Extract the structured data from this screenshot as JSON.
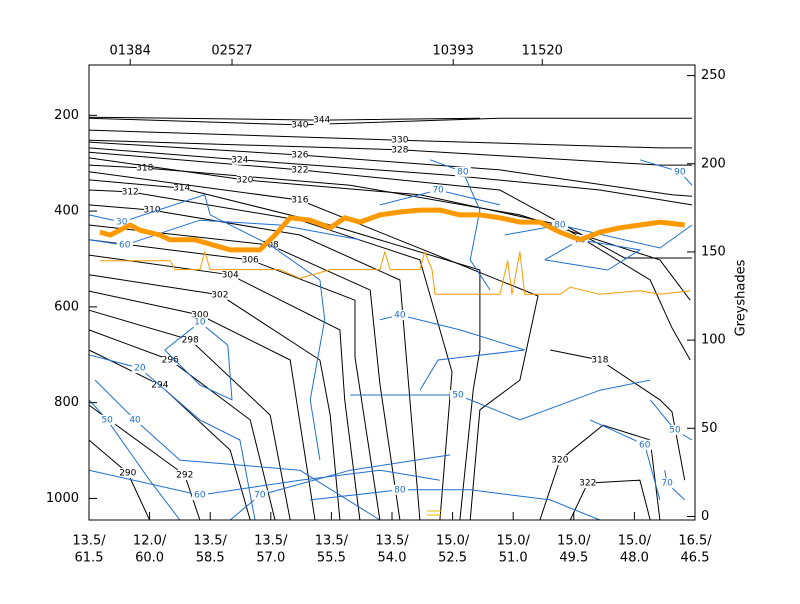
{
  "chart_data": {
    "type": "cross-section",
    "y_label": "Greyshades",
    "xlim": [
      0,
      10
    ],
    "ylim": [
      1045,
      95
    ],
    "y2lim": [
      -2,
      256
    ],
    "xticks": [
      {
        "value": 0,
        "label": [
          "13.5/",
          "61.5"
        ]
      },
      {
        "value": 1,
        "label": [
          "12.0/",
          "60.0"
        ]
      },
      {
        "value": 2,
        "label": [
          "13.5/",
          "58.5"
        ]
      },
      {
        "value": 3,
        "label": [
          "13.5/",
          "57.0"
        ]
      },
      {
        "value": 4,
        "label": [
          "13.5/",
          "55.5"
        ]
      },
      {
        "value": 5,
        "label": [
          "13.5/",
          "54.0"
        ]
      },
      {
        "value": 6,
        "label": [
          "15.0/",
          "52.5"
        ]
      },
      {
        "value": 7,
        "label": [
          "15.0/",
          "51.0"
        ]
      },
      {
        "value": 8,
        "label": [
          "15.0/",
          "49.5"
        ]
      },
      {
        "value": 9,
        "label": [
          "15.0/",
          "48.0"
        ]
      },
      {
        "value": 10,
        "label": [
          "16.5/",
          "46.5"
        ]
      }
    ],
    "yticks": [
      200,
      400,
      600,
      800,
      1000
    ],
    "y2ticks": [
      0,
      50,
      100,
      150,
      200,
      250
    ],
    "stations": [
      {
        "label": "01384",
        "x": 0.68
      },
      {
        "label": "02527",
        "x": 2.36
      },
      {
        "label": "10393",
        "x": 6.01
      },
      {
        "label": "11520",
        "x": 7.48
      }
    ],
    "theta_contours": {
      "color": "#000000",
      "lines": [
        {
          "level": 290,
          "x": [
            0,
            0.64,
            1.0
          ],
          "y": [
            878,
            947,
            1045
          ]
        },
        {
          "level": 292,
          "x": [
            0,
            1.58,
            1.83
          ],
          "y": [
            805,
            951,
            1045
          ]
        },
        {
          "level": 294,
          "x": [
            0,
            1.17,
            2.33,
            2.66
          ],
          "y": [
            690,
            763,
            899,
            1045
          ]
        },
        {
          "level": 296,
          "x": [
            0,
            1.34,
            2.66,
            3.07
          ],
          "y": [
            648,
            711,
            836,
            1045
          ]
        },
        {
          "level": 298,
          "x": [
            0,
            1.67,
            2.99,
            3.32
          ],
          "y": [
            607,
            669,
            826,
            1045
          ]
        },
        {
          "level": 300,
          "x": [
            0,
            1.83,
            3.32,
            3.73
          ],
          "y": [
            567,
            617,
            711,
            1045
          ]
        },
        {
          "level": 302,
          "x": [
            0,
            2.16,
            3.81,
            3.98,
            4.14
          ],
          "y": [
            533,
            575,
            711,
            826,
            1045
          ]
        },
        {
          "level": 304,
          "x": [
            0,
            2.33,
            4.14,
            4.22,
            4.47
          ],
          "y": [
            492,
            533,
            648,
            794,
            1045
          ]
        },
        {
          "level": 306,
          "x": [
            0,
            2.66,
            4.39,
            4.39,
            4.8
          ],
          "y": [
            460,
            502,
            586,
            705,
            1045
          ]
        },
        {
          "level": 308,
          "x": [
            0,
            2.99,
            4.64,
            4.8,
            5.13
          ],
          "y": [
            429,
            471,
            565,
            761,
            1045
          ]
        },
        {
          "level": 310,
          "x": [
            0,
            1.04,
            3.48,
            5.13,
            5.46
          ],
          "y": [
            387,
            398,
            450,
            544,
            1045
          ]
        },
        {
          "level": 312,
          "x": [
            0,
            0.68,
            3.48,
            5.46,
            5.99,
            5.79
          ],
          "y": [
            356,
            360,
            419,
            502,
            736,
            1045
          ]
        },
        {
          "level": 314,
          "x": [
            0,
            1.53,
            3.98,
            6.45,
            6.45,
            6.34,
            6.12
          ],
          "y": [
            335,
            352,
            429,
            523,
            690,
            774,
            1045
          ]
        },
        {
          "level": 316,
          "x": [
            0,
            3.48,
            7.41,
            7.11,
            6.45,
            6.29
          ],
          "y": [
            318,
            377,
            577,
            753,
            815,
            1045
          ]
        },
        {
          "level": 318,
          "x": [
            0,
            0.92,
            4.31,
            7.11,
            9.42,
            9.92
          ],
          "y": [
            304,
            310,
            346,
            408,
            502,
            586
          ]
        },
        {
          "level": 320,
          "x": [
            0,
            2.57,
            5.46,
            7.77,
            9.26,
            9.62,
            9.92
          ],
          "y": [
            289,
            335,
            366,
            429,
            544,
            644,
            711
          ]
        },
        {
          "level": 322,
          "x": [
            0,
            3.48,
            6.78,
            8.84,
            9.95
          ],
          "y": [
            277,
            314,
            356,
            498,
            498
          ]
        },
        {
          "level": 324,
          "x": [
            0,
            2.49,
            5.96,
            8.43,
            9.95
          ],
          "y": [
            268,
            293,
            325,
            356,
            387
          ]
        },
        {
          "level": 326,
          "x": [
            0,
            3.48,
            6.78,
            9.62,
            9.95
          ],
          "y": [
            256,
            283,
            314,
            366,
            369
          ]
        },
        {
          "level": 328,
          "x": [
            0,
            5.13,
            9.42,
            9.95
          ],
          "y": [
            252,
            272,
            304,
            304
          ]
        },
        {
          "level": 330,
          "x": [
            0,
            5.13,
            9.42,
            9.95
          ],
          "y": [
            231,
            252,
            268,
            268
          ]
        },
        {
          "level": 340,
          "x": [
            0,
            3.48,
            6.78,
            8.73,
            9.95
          ],
          "y": [
            206,
            220,
            206,
            206,
            206
          ]
        },
        {
          "level": 344,
          "x": [
            0,
            3.84,
            6.45
          ],
          "y": [
            204,
            210,
            206
          ]
        },
        {
          "level": 320,
          "x": [
            7.44,
            7.77,
            8.48,
            9.26,
            9.42
          ],
          "y": [
            1045,
            920,
            847,
            878,
            1045
          ]
        },
        {
          "level": 322,
          "x": [
            7.94,
            8.23,
            9.09,
            9.26
          ],
          "y": [
            1045,
            968,
            962,
            1045
          ]
        },
        {
          "level": 318,
          "x": [
            7.61,
            8.43,
            9.42,
            9.62,
            9.83
          ],
          "y": [
            690,
            711,
            794,
            819,
            962
          ]
        }
      ]
    },
    "humidity_contours": {
      "color": "#1f6fd0",
      "lines": [
        {
          "level": 10,
          "x": [
            1.25,
            1.83,
            2.29,
            2.36,
            1.83,
            1.25
          ],
          "y": [
            690,
            632,
            680,
            794,
            763,
            690
          ]
        },
        {
          "level": 20,
          "x": [
            0,
            0.84,
            1.83,
            2.49,
            2.74
          ],
          "y": [
            700,
            728,
            836,
            878,
            1045
          ]
        },
        {
          "level": 40,
          "x": [
            0.1,
            0.76,
            1.5,
            3.48,
            4.8
          ],
          "y": [
            753,
            836,
            920,
            941,
            1045
          ]
        },
        {
          "level": 50,
          "x": [
            0,
            0.3,
            1.0,
            1.5
          ],
          "y": [
            794,
            836,
            962,
            1045
          ]
        },
        {
          "level": 60,
          "x": [
            0,
            1.83,
            3.48,
            4.8,
            5.79
          ],
          "y": [
            941,
            993,
            962,
            941,
            962
          ]
        },
        {
          "level": 70,
          "x": [
            2.33,
            2.82,
            4.31,
            5.96
          ],
          "y": [
            1045,
            993,
            941,
            909
          ]
        },
        {
          "level": 80,
          "x": [
            3.65,
            5.13,
            6.29,
            7.61,
            8.43
          ],
          "y": [
            1003,
            982,
            982,
            1003,
            1045
          ]
        },
        {
          "level": 30,
          "x": [
            0,
            0.54,
            1.91,
            2.0,
            2.99,
            3.81,
            3.89,
            3.65,
            3.81
          ],
          "y": [
            408,
            423,
            366,
            408,
            471,
            544,
            627,
            794,
            920
          ]
        },
        {
          "level": 60,
          "x": [
            0,
            0.59,
            1.83,
            3.15,
            4.47
          ],
          "y": [
            460,
            471,
            419,
            429,
            460
          ]
        },
        {
          "level": 40,
          "x": [
            4.8,
            5.13,
            6.12,
            7.19,
            5.76,
            5.46
          ],
          "y": [
            627,
            617,
            648,
            690,
            711,
            774
          ]
        },
        {
          "level": 50,
          "x": [
            4.31,
            6.09,
            7.11,
            8.43,
            9.26
          ],
          "y": [
            784,
            784,
            836,
            774,
            753
          ]
        },
        {
          "level": 70,
          "x": [
            4.8,
            5.76,
            6.78
          ],
          "y": [
            387,
            356,
            387
          ]
        },
        {
          "level": 80,
          "x": [
            5.63,
            6.17,
            6.45,
            6.29,
            6.62
          ],
          "y": [
            293,
            318,
            398,
            502,
            565
          ]
        },
        {
          "level": 70,
          "x": [
            7.52,
            8.1,
            9.09,
            8.56,
            7.52
          ],
          "y": [
            502,
            460,
            481,
            523,
            502
          ]
        },
        {
          "level": 80,
          "x": [
            6.86,
            7.77,
            9.42,
            9.95
          ],
          "y": [
            450,
            429,
            477,
            429
          ]
        },
        {
          "level": 90,
          "x": [
            9.09,
            9.75,
            9.95
          ],
          "y": [
            293,
            318,
            346
          ]
        },
        {
          "level": 60,
          "x": [
            8.27,
            9.17,
            9.42
          ],
          "y": [
            836,
            888,
            1003
          ]
        },
        {
          "level": 50,
          "x": [
            9.26,
            9.67,
            9.95
          ],
          "y": [
            794,
            857,
            878
          ]
        },
        {
          "level": 70,
          "x": [
            9.5,
            9.54,
            9.83
          ],
          "y": [
            941,
            968,
            1003
          ]
        }
      ]
    },
    "series": [
      {
        "color": "#ff9900",
        "x": [
          0.18,
          0.35,
          0.68,
          0.84,
          1.17,
          1.34,
          1.75,
          2.33,
          2.82,
          3.07,
          3.32,
          3.65,
          3.98,
          4.22,
          4.47,
          4.8,
          5.13,
          5.46,
          5.79,
          6.12,
          6.45,
          6.78,
          7.11,
          7.44,
          7.77,
          8.1,
          8.43,
          8.76,
          9.09,
          9.42,
          9.83
        ],
        "values": [
          444,
          450,
          429,
          440,
          450,
          460,
          460,
          481,
          481,
          450,
          414,
          419,
          435,
          414,
          423,
          408,
          402,
          398,
          398,
          408,
          408,
          414,
          423,
          423,
          444,
          460,
          444,
          435,
          429,
          423,
          429
        ]
      },
      {
        "color": "#ff9900",
        "axis": "y2",
        "x": [
          0.18,
          1.34,
          1.42,
          1.83,
          1.91,
          2.0,
          3.15,
          3.48,
          3.98,
          4.8,
          4.88,
          4.97,
          5.46,
          5.54,
          5.66,
          5.71,
          6.78,
          6.91,
          6.98,
          7.11,
          7.19,
          7.77,
          7.94,
          8.43,
          9.09,
          9.42,
          9.92
        ],
        "values": [
          145,
          145,
          140,
          140,
          150,
          140,
          140,
          135,
          140,
          140,
          150,
          140,
          140,
          150,
          140,
          126,
          126,
          145,
          126,
          150,
          126,
          126,
          130,
          126,
          128,
          126,
          128
        ]
      }
    ]
  }
}
